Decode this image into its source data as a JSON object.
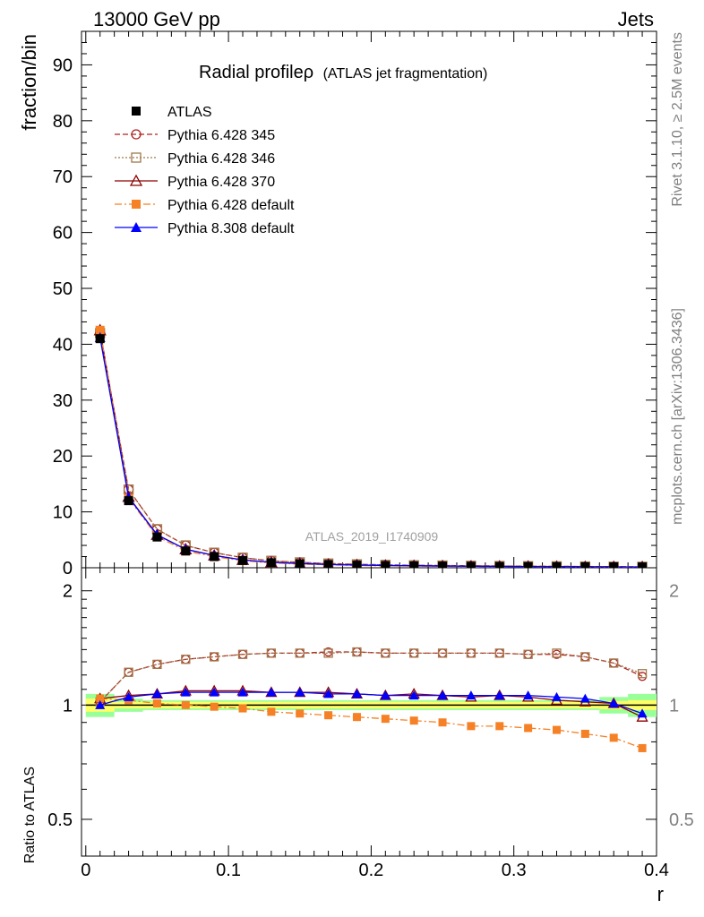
{
  "header": {
    "left": "13000 GeV pp",
    "right": "Jets"
  },
  "side_labels": {
    "rivet": "Rivet 3.1.10, ≥ 2.5M events",
    "mcplots": "mcplots.cern.ch [arXiv:1306.3436]"
  },
  "colors": {
    "atlas": "#000000",
    "py345": "#b22222",
    "py346": "#a0784a",
    "py370": "#8b0000",
    "py6def": "#f58025",
    "py8def": "#0000ff",
    "band_inner": "#ffff66",
    "band_outer": "#99ff99"
  },
  "chart_data": [
    {
      "type": "line",
      "title": "Radial profile ρ (ATLAS jet fragmentation)",
      "title_main": "Radial profileρ",
      "title_sub": "(ATLAS jet fragmentation)",
      "ylabel": "fraction/bin",
      "watermark": "ATLAS_2019_I1740909",
      "ylim": [
        0,
        96
      ],
      "yticks": [
        "0",
        "10",
        "20",
        "30",
        "40",
        "50",
        "60",
        "70",
        "80",
        "90"
      ],
      "x": [
        0.01,
        0.03,
        0.05,
        0.07,
        0.09,
        0.11,
        0.13,
        0.15,
        0.17,
        0.19,
        0.21,
        0.23,
        0.25,
        0.27,
        0.29,
        0.31,
        0.33,
        0.35,
        0.37,
        0.39
      ],
      "legend_position": "top-left",
      "series": [
        {
          "name": "ATLAS",
          "marker": "filled-square",
          "values": [
            41.0,
            12.0,
            5.5,
            3.0,
            2.0,
            1.3,
            0.9,
            0.7,
            0.55,
            0.45,
            0.38,
            0.33,
            0.29,
            0.26,
            0.23,
            0.21,
            0.19,
            0.17,
            0.16,
            0.15
          ]
        },
        {
          "name": "Pythia 6.428 345",
          "marker": "open-circle",
          "dash": "dashed",
          "values": [
            42.0,
            14.0,
            6.9,
            4.0,
            2.7,
            1.8,
            1.25,
            0.97,
            0.76,
            0.62,
            0.52,
            0.45,
            0.4,
            0.36,
            0.31,
            0.28,
            0.26,
            0.23,
            0.2,
            0.17
          ]
        },
        {
          "name": "Pythia 6.428 346",
          "marker": "open-square",
          "dash": "dotted",
          "values": [
            42.0,
            14.0,
            6.9,
            4.0,
            2.7,
            1.8,
            1.25,
            0.97,
            0.76,
            0.62,
            0.52,
            0.45,
            0.4,
            0.36,
            0.31,
            0.28,
            0.26,
            0.23,
            0.2,
            0.18
          ]
        },
        {
          "name": "Pythia 6.428 370",
          "marker": "open-triangle",
          "dash": "solid",
          "values": [
            42.5,
            12.7,
            5.9,
            3.3,
            2.2,
            1.4,
            0.97,
            0.75,
            0.59,
            0.48,
            0.4,
            0.35,
            0.31,
            0.27,
            0.25,
            0.22,
            0.2,
            0.17,
            0.16,
            0.14
          ]
        },
        {
          "name": "Pythia 6.428 default",
          "marker": "filled-square",
          "dash": "dashdot",
          "values": [
            42.5,
            12.4,
            5.6,
            3.0,
            1.98,
            1.27,
            0.86,
            0.66,
            0.52,
            0.41,
            0.35,
            0.3,
            0.26,
            0.23,
            0.2,
            0.18,
            0.16,
            0.14,
            0.13,
            0.12
          ]
        },
        {
          "name": "Pythia 8.308 default",
          "marker": "filled-triangle",
          "dash": "solid",
          "values": [
            41.2,
            12.6,
            5.9,
            3.3,
            2.2,
            1.4,
            0.98,
            0.76,
            0.59,
            0.49,
            0.41,
            0.36,
            0.31,
            0.28,
            0.25,
            0.22,
            0.2,
            0.18,
            0.16,
            0.14
          ]
        }
      ]
    },
    {
      "type": "line",
      "ylabel": "Ratio to ATLAS",
      "xlabel": "r",
      "xlim": [
        -0.003,
        0.4
      ],
      "ylim": [
        0.4,
        2.3
      ],
      "yscale": "log",
      "xticks": [
        "0",
        "0.1",
        "0.2",
        "0.3",
        "0.4"
      ],
      "yticks": [
        "0.5",
        "1",
        "2"
      ],
      "x": [
        0.01,
        0.03,
        0.05,
        0.07,
        0.09,
        0.11,
        0.13,
        0.15,
        0.17,
        0.19,
        0.21,
        0.23,
        0.25,
        0.27,
        0.29,
        0.31,
        0.33,
        0.35,
        0.37,
        0.39
      ],
      "band_inner": [
        0.04,
        0.02,
        0.02,
        0.02,
        0.02,
        0.02,
        0.02,
        0.02,
        0.02,
        0.02,
        0.02,
        0.02,
        0.02,
        0.02,
        0.02,
        0.02,
        0.02,
        0.02,
        0.025,
        0.03
      ],
      "band_outer": [
        0.07,
        0.04,
        0.03,
        0.03,
        0.03,
        0.03,
        0.03,
        0.03,
        0.03,
        0.03,
        0.03,
        0.03,
        0.03,
        0.03,
        0.03,
        0.03,
        0.03,
        0.03,
        0.05,
        0.07
      ],
      "series": [
        {
          "name": "Pythia 6.428 345",
          "values": [
            1.02,
            1.22,
            1.28,
            1.32,
            1.34,
            1.36,
            1.37,
            1.37,
            1.38,
            1.38,
            1.37,
            1.37,
            1.37,
            1.37,
            1.37,
            1.36,
            1.36,
            1.34,
            1.29,
            1.19
          ]
        },
        {
          "name": "Pythia 6.428 346",
          "values": [
            1.02,
            1.22,
            1.28,
            1.32,
            1.34,
            1.36,
            1.37,
            1.37,
            1.37,
            1.38,
            1.37,
            1.37,
            1.37,
            1.37,
            1.37,
            1.36,
            1.37,
            1.34,
            1.29,
            1.21
          ]
        },
        {
          "name": "Pythia 6.428 370",
          "values": [
            1.04,
            1.06,
            1.07,
            1.09,
            1.09,
            1.09,
            1.08,
            1.08,
            1.08,
            1.07,
            1.06,
            1.07,
            1.06,
            1.05,
            1.06,
            1.05,
            1.03,
            1.02,
            1.01,
            0.93
          ]
        },
        {
          "name": "Pythia 6.428 default",
          "values": [
            1.04,
            1.03,
            1.01,
            1.0,
            0.99,
            0.98,
            0.96,
            0.95,
            0.94,
            0.93,
            0.92,
            0.91,
            0.9,
            0.88,
            0.88,
            0.87,
            0.86,
            0.84,
            0.82,
            0.77
          ]
        },
        {
          "name": "Pythia 8.308 default",
          "values": [
            1.0,
            1.05,
            1.07,
            1.08,
            1.08,
            1.08,
            1.08,
            1.08,
            1.07,
            1.07,
            1.06,
            1.06,
            1.06,
            1.06,
            1.06,
            1.06,
            1.05,
            1.04,
            1.01,
            0.95
          ]
        }
      ]
    }
  ]
}
